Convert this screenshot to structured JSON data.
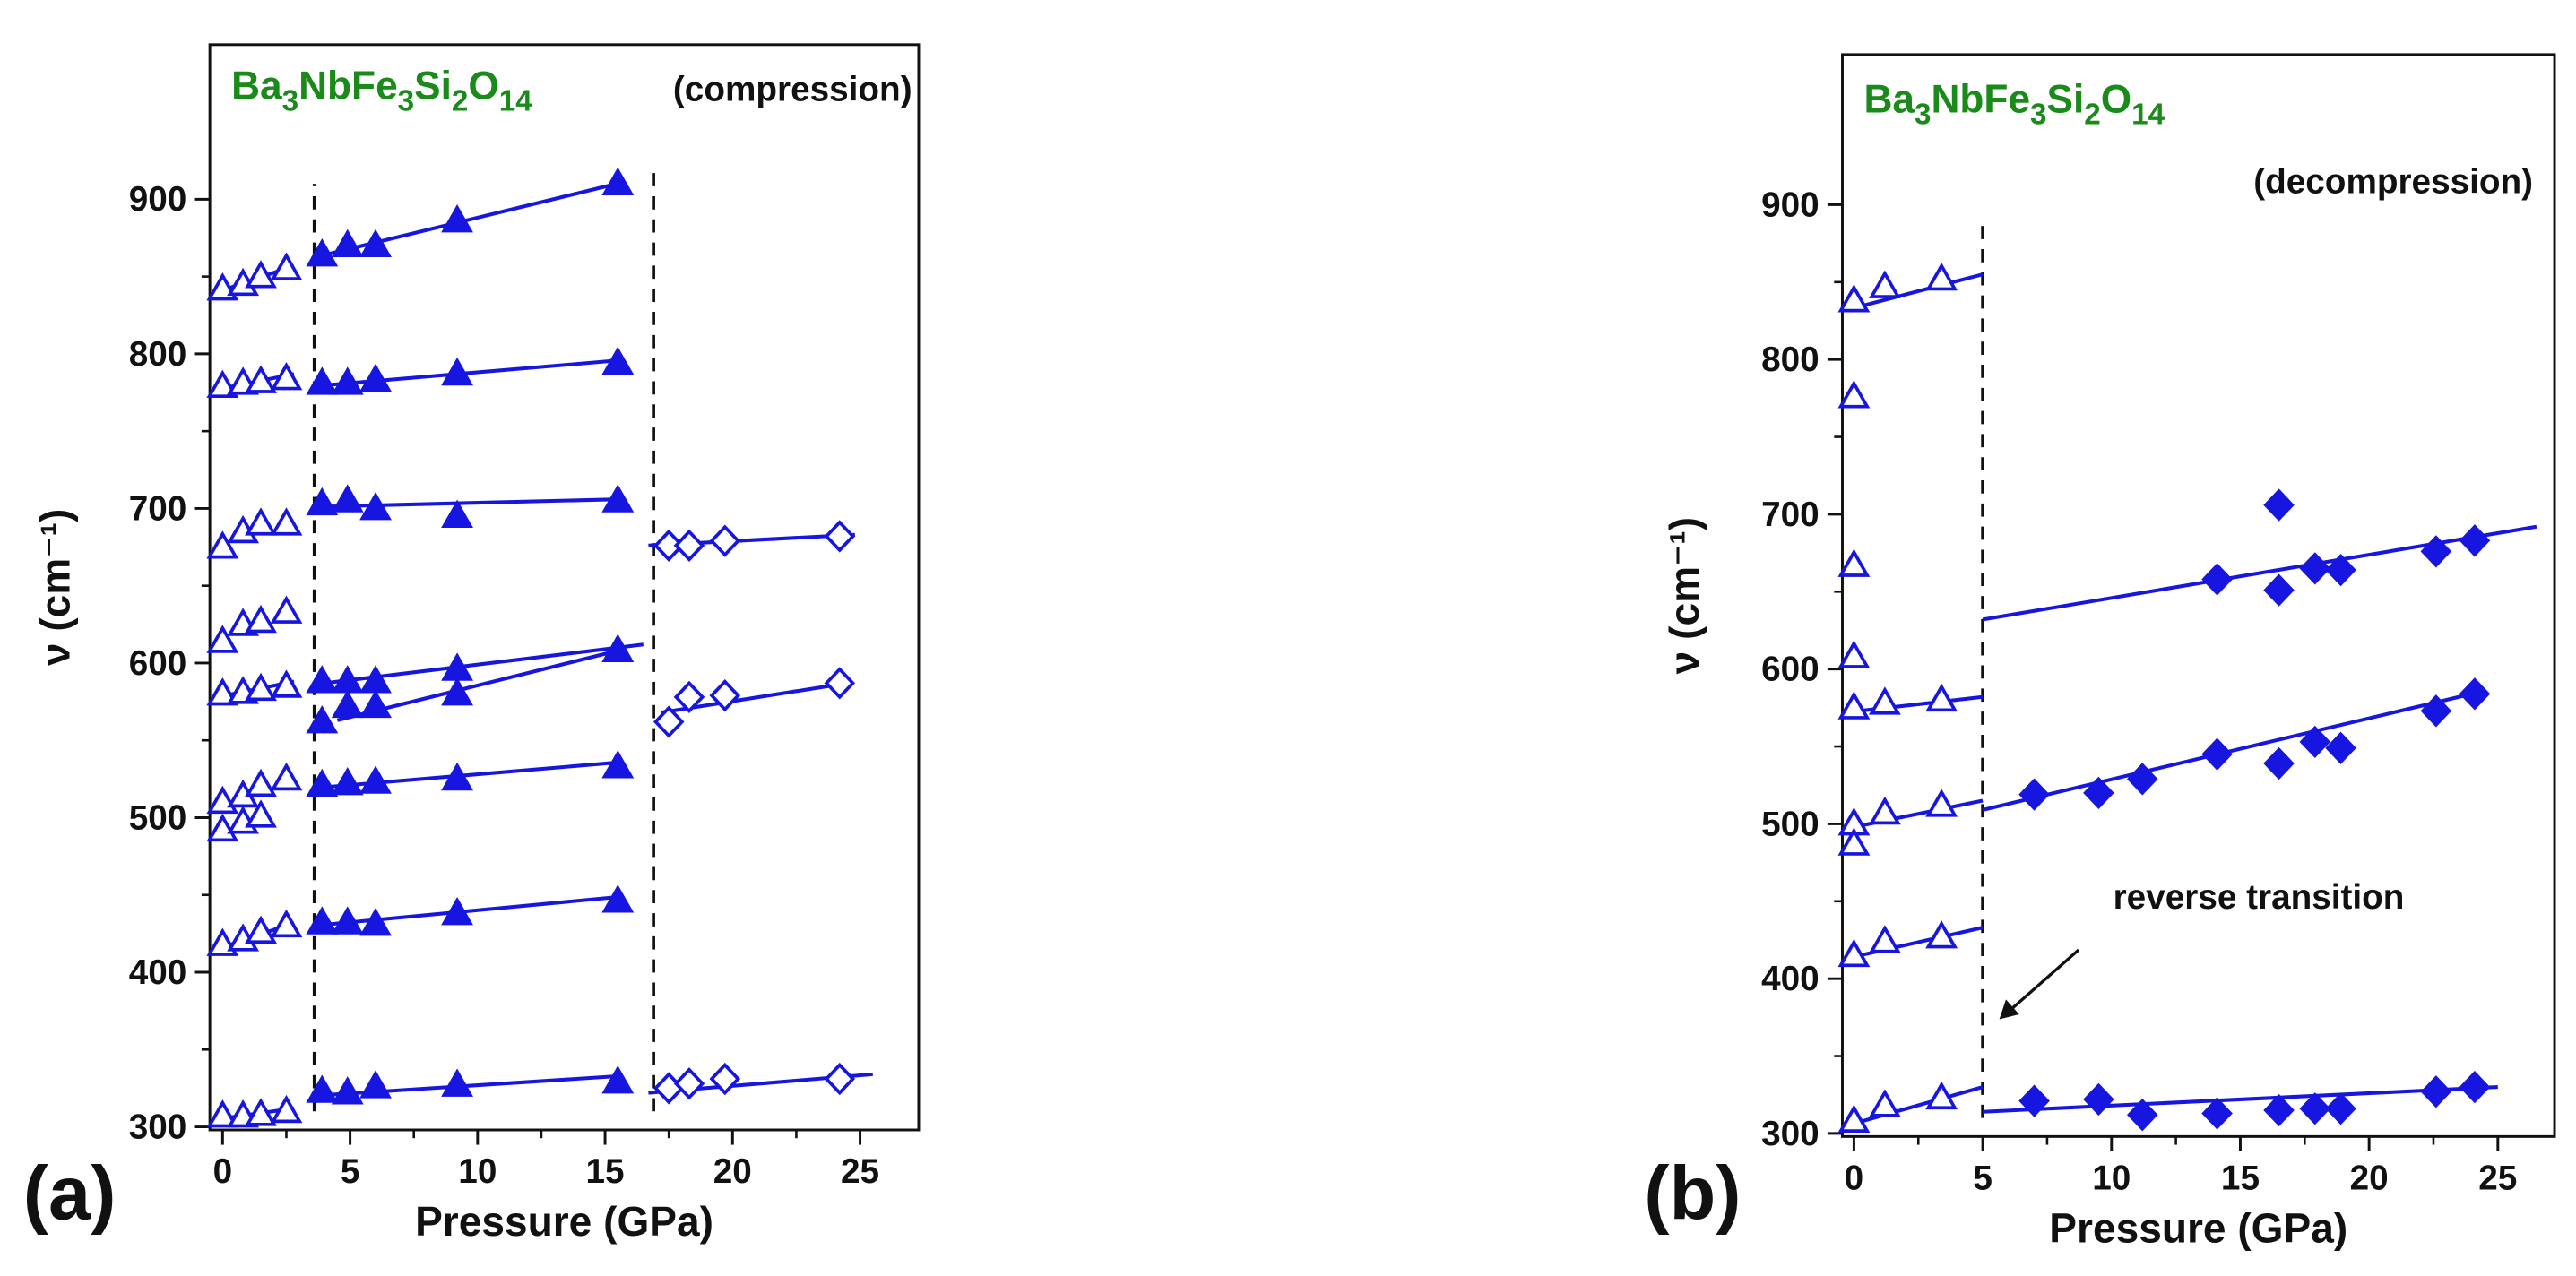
{
  "chart_data": [
    {
      "type": "scatter",
      "panel_label": "(a)",
      "title": "Ba3NbFe3Si2O14",
      "subtitle": "(compression)",
      "xlabel": "Pressure (GPa)",
      "ylabel": "ν (cm⁻¹)",
      "xlim": [
        -0.5,
        27.3
      ],
      "ylim": [
        298,
        1000
      ],
      "xticks": [
        0,
        5,
        10,
        15,
        20,
        25
      ],
      "yticks": [
        300,
        400,
        500,
        600,
        700,
        800,
        900
      ],
      "series": [
        {
          "marker": "triangle",
          "filled": false,
          "color": "#1616e0",
          "x": [
            0,
            0.8,
            1.5,
            2.5,
            0,
            0.8,
            1.5,
            2.5,
            0,
            0.8,
            1.5,
            2.5,
            0,
            0.8,
            1.5,
            2.5,
            0,
            0.8,
            1.5,
            2.5,
            0,
            0.8,
            1.5,
            2.5,
            0,
            0.8,
            1.5,
            0,
            0.8,
            1.5,
            2.5,
            0,
            0.8,
            1.5,
            2.5
          ],
          "values": [
            842,
            845,
            850,
            855,
            779,
            781,
            782,
            784,
            675,
            685,
            690,
            690,
            614,
            625,
            627,
            633,
            580,
            581,
            583,
            585,
            510,
            514,
            521,
            525,
            492,
            497,
            501,
            418,
            421,
            426,
            430,
            307,
            307,
            308,
            310
          ]
        },
        {
          "marker": "triangle",
          "filled": true,
          "color": "#1616e0",
          "x": [
            3.9,
            4.9,
            6,
            9.2,
            15.5,
            3.9,
            4.9,
            6,
            9.2,
            15.5,
            3.9,
            4.9,
            6,
            9.2,
            15.5,
            3.9,
            4.9,
            6,
            9.2,
            15.5,
            3.9,
            4.9,
            6,
            9.2,
            15.5,
            3.9,
            4.9,
            6,
            9.2,
            15.5,
            3.9,
            4.9,
            6,
            9.2,
            15.5,
            3.9,
            4.9,
            6,
            9.2,
            15.5
          ],
          "values": [
            864,
            870,
            870,
            886,
            910,
            781,
            781,
            783,
            787,
            794,
            703,
            705,
            700,
            695,
            705,
            588,
            588,
            588,
            596,
            608,
            562,
            572,
            572,
            580,
            608,
            521,
            522,
            523,
            525,
            533,
            432,
            432,
            431,
            438,
            446,
            323,
            322,
            326,
            327,
            329
          ]
        },
        {
          "marker": "diamond",
          "filled": false,
          "color": "#1616e0",
          "x": [
            17.5,
            18.3,
            19.7,
            24.2,
            17.5,
            18.3,
            19.7,
            24.2,
            17.5,
            18.3,
            19.7,
            24.2
          ],
          "values": [
            676,
            676,
            679,
            682,
            562,
            578,
            579,
            587,
            325,
            328,
            331,
            331
          ]
        }
      ],
      "fits": [
        {
          "x": [
            -0.2,
            2.8
          ],
          "values": [
            840,
            857
          ]
        },
        {
          "x": [
            -0.2,
            2.8
          ],
          "values": [
            777,
            787
          ]
        },
        {
          "x": [
            -0.2,
            2.8
          ],
          "values": [
            578,
            588
          ]
        },
        {
          "x": [
            -0.2,
            2.8
          ],
          "values": [
            415,
            432
          ]
        },
        {
          "x": [
            -0.2,
            2.8
          ],
          "values": [
            305,
            312
          ]
        },
        {
          "x": [
            3.5,
            15.7
          ],
          "values": [
            862,
            911
          ]
        },
        {
          "x": [
            3.5,
            15.7
          ],
          "values": [
            779,
            796
          ]
        },
        {
          "x": [
            3.5,
            15.7
          ],
          "values": [
            701,
            706
          ]
        },
        {
          "x": [
            3.5,
            16.5
          ],
          "values": [
            586,
            612
          ]
        },
        {
          "x": [
            4.5,
            15.5
          ],
          "values": [
            563,
            608
          ]
        },
        {
          "x": [
            3.5,
            15.7
          ],
          "values": [
            519,
            536
          ]
        },
        {
          "x": [
            3.5,
            15.7
          ],
          "values": [
            430,
            449
          ]
        },
        {
          "x": [
            3.5,
            15.7
          ],
          "values": [
            320,
            333
          ]
        },
        {
          "x": [
            16.7,
            24.8
          ],
          "values": [
            676,
            683
          ]
        },
        {
          "x": [
            17.2,
            24.5
          ],
          "values": [
            568,
            587
          ]
        },
        {
          "x": [
            16.7,
            25.5
          ],
          "values": [
            322,
            334
          ]
        }
      ],
      "vlines": [
        {
          "x": 3.6,
          "y": [
            310,
            910
          ]
        },
        {
          "x": 16.9,
          "y": [
            310,
            920
          ]
        }
      ]
    },
    {
      "type": "scatter",
      "panel_label": "(b)",
      "title": "Ba3NbFe3Si2O14",
      "subtitle": "(decompression)",
      "xlabel": "Pressure (GPa)",
      "ylabel": "ν (cm⁻¹)",
      "annotation": "reverse transition",
      "xlim": [
        -0.45,
        27.2
      ],
      "ylim": [
        298,
        997
      ],
      "xticks": [
        0,
        5,
        10,
        15,
        20,
        25
      ],
      "yticks": [
        300,
        400,
        500,
        600,
        700,
        800,
        900
      ],
      "series": [
        {
          "marker": "triangle",
          "filled": false,
          "color": "#1616e0",
          "x": [
            0,
            1.2,
            3.4,
            0,
            0,
            0,
            0,
            1.2,
            3.4,
            0,
            1.2,
            3.4,
            0,
            0,
            1.2,
            3.4,
            0,
            1.2,
            3.4
          ],
          "values": [
            838,
            847,
            852,
            776,
            667,
            608,
            575,
            578,
            580,
            500,
            507,
            512,
            487,
            415,
            424,
            427,
            308,
            318,
            323
          ]
        },
        {
          "marker": "diamond",
          "filled": true,
          "color": "#1616e0",
          "x": [
            14.1,
            16.5,
            16.5,
            17.9,
            18.9,
            22.6,
            24.1,
            7,
            9.5,
            11.2,
            14.1,
            16.5,
            17.9,
            18.9,
            22.6,
            24.1,
            7,
            9.5,
            11.2,
            14.1,
            16.5,
            17.9,
            18.9,
            22.6,
            24.1
          ],
          "values": [
            658,
            706,
            651,
            665,
            664,
            676,
            683,
            519,
            520,
            529,
            545,
            539,
            553,
            549,
            573,
            584,
            321,
            322,
            312,
            313,
            315,
            316,
            316,
            327,
            330
          ]
        }
      ],
      "fits": [
        {
          "x": [
            -0.3,
            5
          ],
          "values": [
            832,
            855
          ]
        },
        {
          "x": [
            -0.3,
            5
          ],
          "values": [
            572,
            582
          ]
        },
        {
          "x": [
            -0.3,
            5
          ],
          "values": [
            497,
            515
          ]
        },
        {
          "x": [
            -0.3,
            5
          ],
          "values": [
            413,
            433
          ]
        },
        {
          "x": [
            -0.3,
            5
          ],
          "values": [
            305,
            330
          ]
        },
        {
          "x": [
            5,
            26.5
          ],
          "values": [
            632,
            692
          ]
        },
        {
          "x": [
            5,
            24.5
          ],
          "values": [
            509,
            586
          ]
        },
        {
          "x": [
            5,
            25
          ],
          "values": [
            314,
            330
          ]
        }
      ],
      "vlines": [
        {
          "x": 5,
          "y": [
            310,
            890
          ]
        }
      ]
    }
  ]
}
